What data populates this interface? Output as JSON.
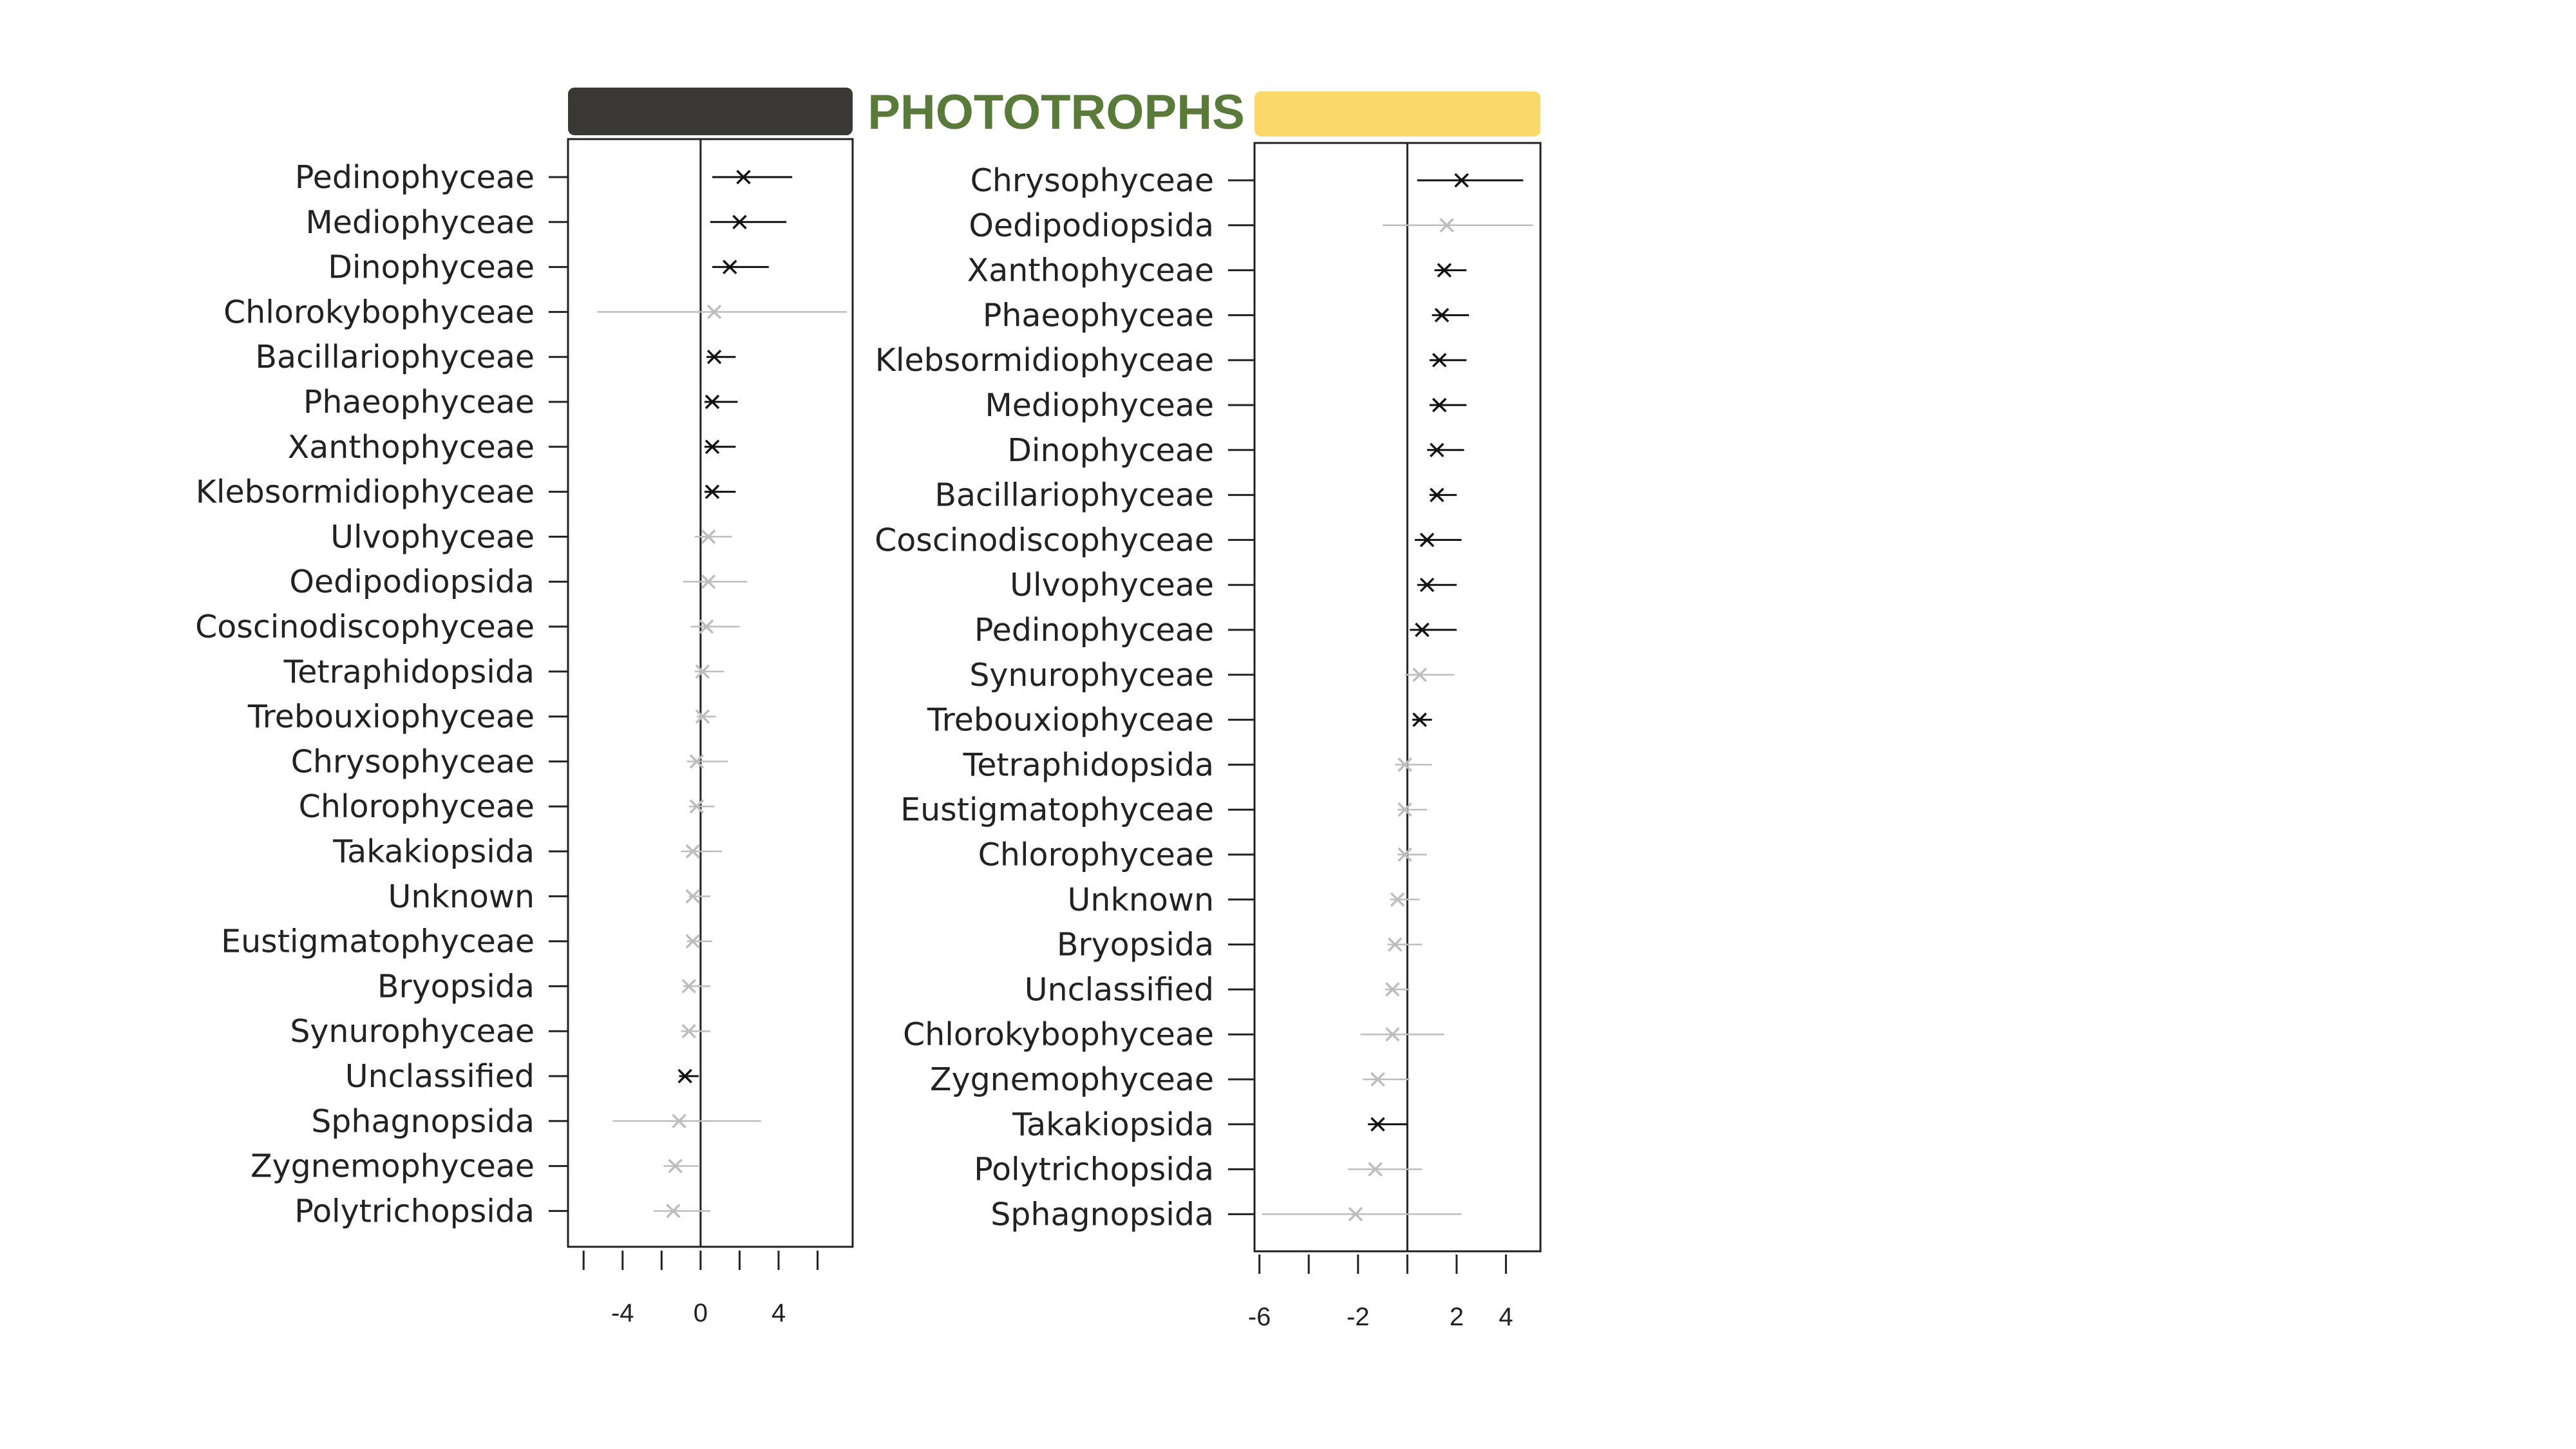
{
  "title": "PHOTOTROPHS",
  "colors": {
    "title": "#5a7a3a",
    "left_header": "#3a3835",
    "right_header": "#fcd869",
    "significant": "#111111",
    "nonsignificant": "#bdbdbd"
  },
  "chart_data": [
    {
      "type": "scatter",
      "header_color": "#3a3835",
      "xlim": [
        -6.8,
        7.8
      ],
      "xticks": [
        -6,
        -4,
        -2,
        0,
        2,
        4,
        6
      ],
      "xtick_labels": [
        "-4",
        "0",
        "4"
      ],
      "xtick_label_values": [
        -4,
        0,
        4
      ],
      "xlabel": "",
      "ylabel": "",
      "points": [
        {
          "label": "Pedinophyceae",
          "x": 2.2,
          "low": 0.6,
          "high": 4.7,
          "sig": true
        },
        {
          "label": "Mediophyceae",
          "x": 2.0,
          "low": 0.5,
          "high": 4.4,
          "sig": true
        },
        {
          "label": "Dinophyceae",
          "x": 1.5,
          "low": 0.6,
          "high": 3.5,
          "sig": true
        },
        {
          "label": "Chlorokybophyceae",
          "x": 0.7,
          "low": -5.3,
          "high": 7.5,
          "sig": false
        },
        {
          "label": "Bacillariophyceae",
          "x": 0.7,
          "low": 0.3,
          "high": 1.8,
          "sig": true
        },
        {
          "label": "Phaeophyceae",
          "x": 0.6,
          "low": 0.2,
          "high": 1.9,
          "sig": true
        },
        {
          "label": "Xanthophyceae",
          "x": 0.6,
          "low": 0.2,
          "high": 1.8,
          "sig": true
        },
        {
          "label": "Klebsormidiophyceae",
          "x": 0.6,
          "low": 0.2,
          "high": 1.8,
          "sig": true
        },
        {
          "label": "Ulvophyceae",
          "x": 0.4,
          "low": -0.3,
          "high": 1.6,
          "sig": false
        },
        {
          "label": "Oedipodiopsida",
          "x": 0.4,
          "low": -0.9,
          "high": 2.4,
          "sig": false
        },
        {
          "label": "Coscinodiscophyceae",
          "x": 0.3,
          "low": -0.5,
          "high": 2.0,
          "sig": false
        },
        {
          "label": "Tetraphidopsida",
          "x": 0.1,
          "low": -0.3,
          "high": 1.2,
          "sig": false
        },
        {
          "label": "Trebouxiophyceae",
          "x": 0.1,
          "low": -0.2,
          "high": 0.8,
          "sig": false
        },
        {
          "label": "Chrysophyceae",
          "x": -0.2,
          "low": -0.7,
          "high": 1.4,
          "sig": false
        },
        {
          "label": "Chlorophyceae",
          "x": -0.2,
          "low": -0.6,
          "high": 0.7,
          "sig": false
        },
        {
          "label": "Takakiopsida",
          "x": -0.4,
          "low": -1.0,
          "high": 1.1,
          "sig": false
        },
        {
          "label": "Unknown",
          "x": -0.4,
          "low": -0.6,
          "high": 0.5,
          "sig": false
        },
        {
          "label": "Eustigmatophyceae",
          "x": -0.4,
          "low": -0.7,
          "high": 0.6,
          "sig": false
        },
        {
          "label": "Bryopsida",
          "x": -0.6,
          "low": -0.9,
          "high": 0.5,
          "sig": false
        },
        {
          "label": "Synurophyceae",
          "x": -0.6,
          "low": -1.0,
          "high": 0.5,
          "sig": false
        },
        {
          "label": "Unclassified",
          "x": -0.8,
          "low": -1.1,
          "high": -0.1,
          "sig": true
        },
        {
          "label": "Sphagnopsida",
          "x": -1.1,
          "low": -4.5,
          "high": 3.1,
          "sig": false
        },
        {
          "label": "Zygnemophyceae",
          "x": -1.3,
          "low": -1.9,
          "high": -0.1,
          "sig": false
        },
        {
          "label": "Polytrichopsida",
          "x": -1.4,
          "low": -2.4,
          "high": 0.5,
          "sig": false
        }
      ]
    },
    {
      "type": "scatter",
      "header_color": "#fcd869",
      "xlim": [
        -6.2,
        5.4
      ],
      "xticks": [
        -6,
        -4,
        -2,
        0,
        2,
        4
      ],
      "xtick_labels": [
        "-6",
        "-2",
        "2",
        "4"
      ],
      "xtick_label_values": [
        -6,
        -2,
        2,
        4
      ],
      "xlabel": "",
      "ylabel": "",
      "points": [
        {
          "label": "Chrysophyceae",
          "x": 2.2,
          "low": 0.4,
          "high": 4.7,
          "sig": true
        },
        {
          "label": "Oedipodiopsida",
          "x": 1.6,
          "low": -1.0,
          "high": 5.1,
          "sig": false
        },
        {
          "label": "Xanthophyceae",
          "x": 1.5,
          "low": 1.1,
          "high": 2.4,
          "sig": true
        },
        {
          "label": "Phaeophyceae",
          "x": 1.4,
          "low": 1.0,
          "high": 2.5,
          "sig": true
        },
        {
          "label": "Klebsormidiophyceae",
          "x": 1.3,
          "low": 0.9,
          "high": 2.4,
          "sig": true
        },
        {
          "label": "Mediophyceae",
          "x": 1.3,
          "low": 0.9,
          "high": 2.4,
          "sig": true
        },
        {
          "label": "Dinophyceae",
          "x": 1.2,
          "low": 0.8,
          "high": 2.3,
          "sig": true
        },
        {
          "label": "Bacillariophyceae",
          "x": 1.2,
          "low": 0.9,
          "high": 2.0,
          "sig": true
        },
        {
          "label": "Coscinodiscophyceae",
          "x": 0.8,
          "low": 0.3,
          "high": 2.2,
          "sig": true
        },
        {
          "label": "Ulvophyceae",
          "x": 0.8,
          "low": 0.4,
          "high": 2.0,
          "sig": true
        },
        {
          "label": "Pedinophyceae",
          "x": 0.6,
          "low": 0.1,
          "high": 2.0,
          "sig": true
        },
        {
          "label": "Synurophyceae",
          "x": 0.5,
          "low": -0.1,
          "high": 1.9,
          "sig": false
        },
        {
          "label": "Trebouxiophyceae",
          "x": 0.5,
          "low": 0.2,
          "high": 1.0,
          "sig": true
        },
        {
          "label": "Tetraphidopsida",
          "x": -0.1,
          "low": -0.5,
          "high": 1.0,
          "sig": false
        },
        {
          "label": "Eustigmatophyceae",
          "x": -0.1,
          "low": -0.4,
          "high": 0.8,
          "sig": false
        },
        {
          "label": "Chlorophyceae",
          "x": -0.1,
          "low": -0.4,
          "high": 0.8,
          "sig": false
        },
        {
          "label": "Unknown",
          "x": -0.4,
          "low": -0.7,
          "high": 0.5,
          "sig": false
        },
        {
          "label": "Bryopsida",
          "x": -0.5,
          "low": -0.8,
          "high": 0.6,
          "sig": false
        },
        {
          "label": "Unclassified",
          "x": -0.6,
          "low": -0.9,
          "high": 0.1,
          "sig": false
        },
        {
          "label": "Chlorokybophyceae",
          "x": -0.6,
          "low": -1.9,
          "high": 1.5,
          "sig": false
        },
        {
          "label": "Zygnemophyceae",
          "x": -1.2,
          "low": -1.8,
          "high": 0.1,
          "sig": false
        },
        {
          "label": "Takakiopsida",
          "x": -1.2,
          "low": -1.6,
          "high": 0.0,
          "sig": true
        },
        {
          "label": "Polytrichopsida",
          "x": -1.3,
          "low": -2.4,
          "high": 0.6,
          "sig": false
        },
        {
          "label": "Sphagnopsida",
          "x": -2.1,
          "low": -5.9,
          "high": 2.2,
          "sig": false
        }
      ]
    }
  ]
}
